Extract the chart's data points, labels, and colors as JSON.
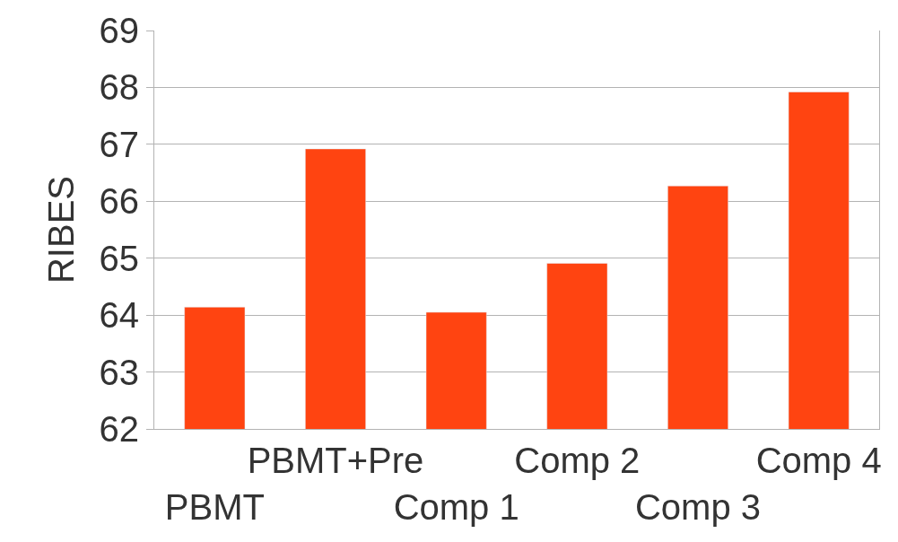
{
  "chart_data": {
    "type": "bar",
    "ylabel": "RIBES",
    "categories": [
      "PBMT",
      "PBMT+Pre",
      "Comp 1",
      "Comp 2",
      "Comp 3",
      "Comp 4"
    ],
    "series": [
      {
        "color": "#ff4411",
        "values": [
          64.14,
          66.92,
          64.05,
          64.91,
          66.27,
          67.92
        ]
      }
    ],
    "ylim": [
      62,
      69
    ],
    "yticks": [
      62,
      63,
      64,
      65,
      66,
      67,
      68,
      69
    ],
    "grid": "y"
  }
}
